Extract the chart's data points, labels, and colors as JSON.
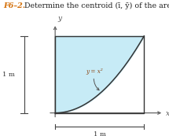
{
  "title_prefix": "F6–2.",
  "title_prefix_color": "#D4700A",
  "title_text": "  Determine the centroid (ī, ȳ) of the area.",
  "title_fontsize": 6.8,
  "fig_bg": "#ffffff",
  "curve_label": "y = x²",
  "label_left": "1 m",
  "label_bottom": "1 m",
  "fill_color": "#BDE8F5",
  "fill_alpha": 0.85,
  "axis_color": "#666666",
  "box_color": "#333333",
  "curve_color": "#333333",
  "xlim": [
    -0.62,
    1.28
  ],
  "ylim": [
    -0.3,
    1.22
  ]
}
